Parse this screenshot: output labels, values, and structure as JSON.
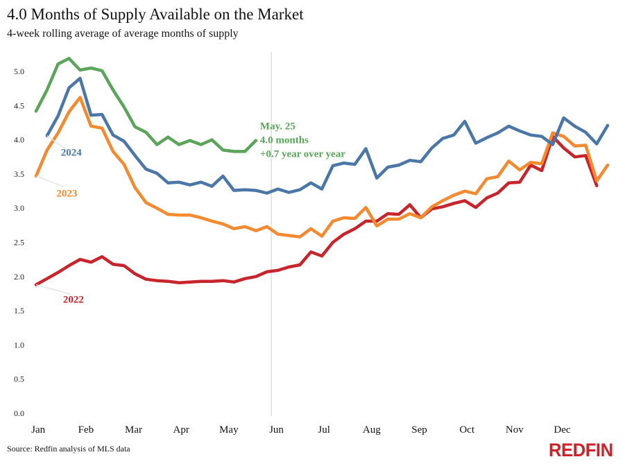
{
  "header": {
    "title": "4.0 Months of Supply Available on the Market",
    "subtitle": "4-week rolling average of average months of supply"
  },
  "footer": {
    "source": "Source: Redfin analysis of MLS data",
    "logo": "REDFIN"
  },
  "colors": {
    "2022": "#c8242b",
    "2023": "#f5892f",
    "2024": "#4b77a8",
    "2025": "#5aa55a",
    "gridline": "#dddddd",
    "brand": "#cf2227"
  },
  "chart_data": {
    "type": "line",
    "title": "4.0 Months of Supply Available on the Market",
    "subtitle": "4-week rolling average of average months of supply",
    "xlabel": "",
    "ylabel": "",
    "ylim": [
      0,
      5.3
    ],
    "yticks": [
      "0.0",
      "0.5",
      "1.0",
      "1.5",
      "2.0",
      "2.5",
      "3.0",
      "3.5",
      "4.0",
      "4.5",
      "5.0"
    ],
    "xticks": [
      "Jan",
      "Feb",
      "Mar",
      "Apr",
      "May",
      "Jun",
      "Jul",
      "Aug",
      "Sep",
      "Oct",
      "Nov",
      "Dec"
    ],
    "x_unit": "week of year",
    "grid": "none",
    "reference_line_week": 21.4,
    "series": [
      {
        "name": "2022",
        "label_week": 3.4,
        "label_value": 1.62,
        "x": [
          0,
          1,
          2,
          3,
          4,
          5,
          6,
          7,
          8,
          9,
          10,
          11,
          12,
          13,
          14,
          15,
          16,
          17,
          18,
          19,
          20,
          21,
          22,
          23,
          24,
          25,
          26,
          27,
          28,
          29,
          30,
          31,
          32,
          33,
          34,
          35,
          36,
          37,
          38,
          39,
          40,
          41,
          42,
          43,
          44,
          45,
          46,
          47,
          48,
          49,
          50,
          51
        ],
        "values": [
          1.88,
          1.97,
          2.06,
          2.16,
          2.25,
          2.21,
          2.29,
          2.18,
          2.16,
          2.04,
          1.96,
          1.94,
          1.93,
          1.91,
          1.92,
          1.93,
          1.93,
          1.94,
          1.92,
          1.97,
          2.0,
          2.07,
          2.09,
          2.14,
          2.17,
          2.36,
          2.3,
          2.5,
          2.62,
          2.7,
          2.81,
          2.81,
          2.92,
          2.91,
          3.05,
          2.86,
          2.99,
          3.02,
          3.07,
          3.11,
          3.01,
          3.15,
          3.22,
          3.37,
          3.38,
          3.63,
          3.55,
          4.05,
          3.88,
          3.75,
          3.77,
          3.33
        ]
      },
      {
        "name": "2023",
        "label_week": 2.8,
        "label_value": 3.17,
        "x": [
          0,
          1,
          2,
          3,
          4,
          5,
          6,
          7,
          8,
          9,
          10,
          11,
          12,
          13,
          14,
          15,
          16,
          17,
          18,
          19,
          20,
          21,
          22,
          23,
          24,
          25,
          26,
          27,
          28,
          29,
          30,
          31,
          32,
          33,
          34,
          35,
          36,
          37,
          38,
          39,
          40,
          41,
          42,
          43,
          44,
          45,
          46,
          47,
          48,
          49,
          50,
          51,
          52
        ],
        "values": [
          3.47,
          3.85,
          4.1,
          4.41,
          4.62,
          4.2,
          4.17,
          3.83,
          3.64,
          3.3,
          3.08,
          3.0,
          2.91,
          2.9,
          2.9,
          2.86,
          2.81,
          2.77,
          2.7,
          2.73,
          2.67,
          2.73,
          2.62,
          2.6,
          2.58,
          2.7,
          2.59,
          2.81,
          2.86,
          2.85,
          3.01,
          2.74,
          2.84,
          2.84,
          2.92,
          2.86,
          3.02,
          3.11,
          3.19,
          3.25,
          3.21,
          3.43,
          3.46,
          3.69,
          3.56,
          3.67,
          3.65,
          4.1,
          4.05,
          3.91,
          3.92,
          3.4,
          3.63
        ]
      },
      {
        "name": "2024",
        "label_week": 3.2,
        "label_value": 3.77,
        "x": [
          1,
          2,
          3,
          4,
          5,
          6,
          7,
          8,
          9,
          10,
          11,
          12,
          13,
          14,
          15,
          16,
          17,
          18,
          19,
          20,
          21,
          22,
          23,
          24,
          25,
          26,
          27,
          28,
          29,
          30,
          31,
          32,
          33,
          34,
          35,
          36,
          37,
          38,
          39,
          40,
          41,
          42,
          43,
          44,
          45,
          46,
          47,
          48,
          49,
          50,
          51,
          52
        ],
        "values": [
          4.06,
          4.35,
          4.76,
          4.9,
          4.36,
          4.37,
          4.07,
          3.98,
          3.77,
          3.57,
          3.51,
          3.37,
          3.38,
          3.34,
          3.38,
          3.32,
          3.47,
          3.26,
          3.27,
          3.26,
          3.22,
          3.28,
          3.23,
          3.27,
          3.37,
          3.28,
          3.62,
          3.66,
          3.64,
          3.87,
          3.44,
          3.6,
          3.63,
          3.7,
          3.68,
          3.88,
          4.02,
          4.07,
          4.27,
          3.95,
          4.03,
          4.1,
          4.2,
          4.13,
          4.07,
          4.05,
          3.93,
          4.32,
          4.2,
          4.11,
          3.94,
          4.21
        ]
      },
      {
        "name": "",
        "x": [
          0,
          1,
          2,
          3,
          4,
          5,
          6,
          7,
          8,
          9,
          10,
          11,
          12,
          13,
          14,
          15,
          16,
          17,
          18,
          19,
          20
        ],
        "values": [
          4.42,
          4.73,
          5.11,
          5.19,
          5.02,
          5.05,
          5.01,
          4.73,
          4.48,
          4.19,
          4.11,
          3.93,
          4.04,
          3.93,
          3.99,
          3.93,
          4.0,
          3.85,
          3.83,
          3.83,
          3.99
        ]
      }
    ],
    "annotation": {
      "lines": [
        "May. 25",
        "4.0 months",
        "+0.7 year over year"
      ],
      "week": 20.0,
      "value": 3.99
    }
  }
}
